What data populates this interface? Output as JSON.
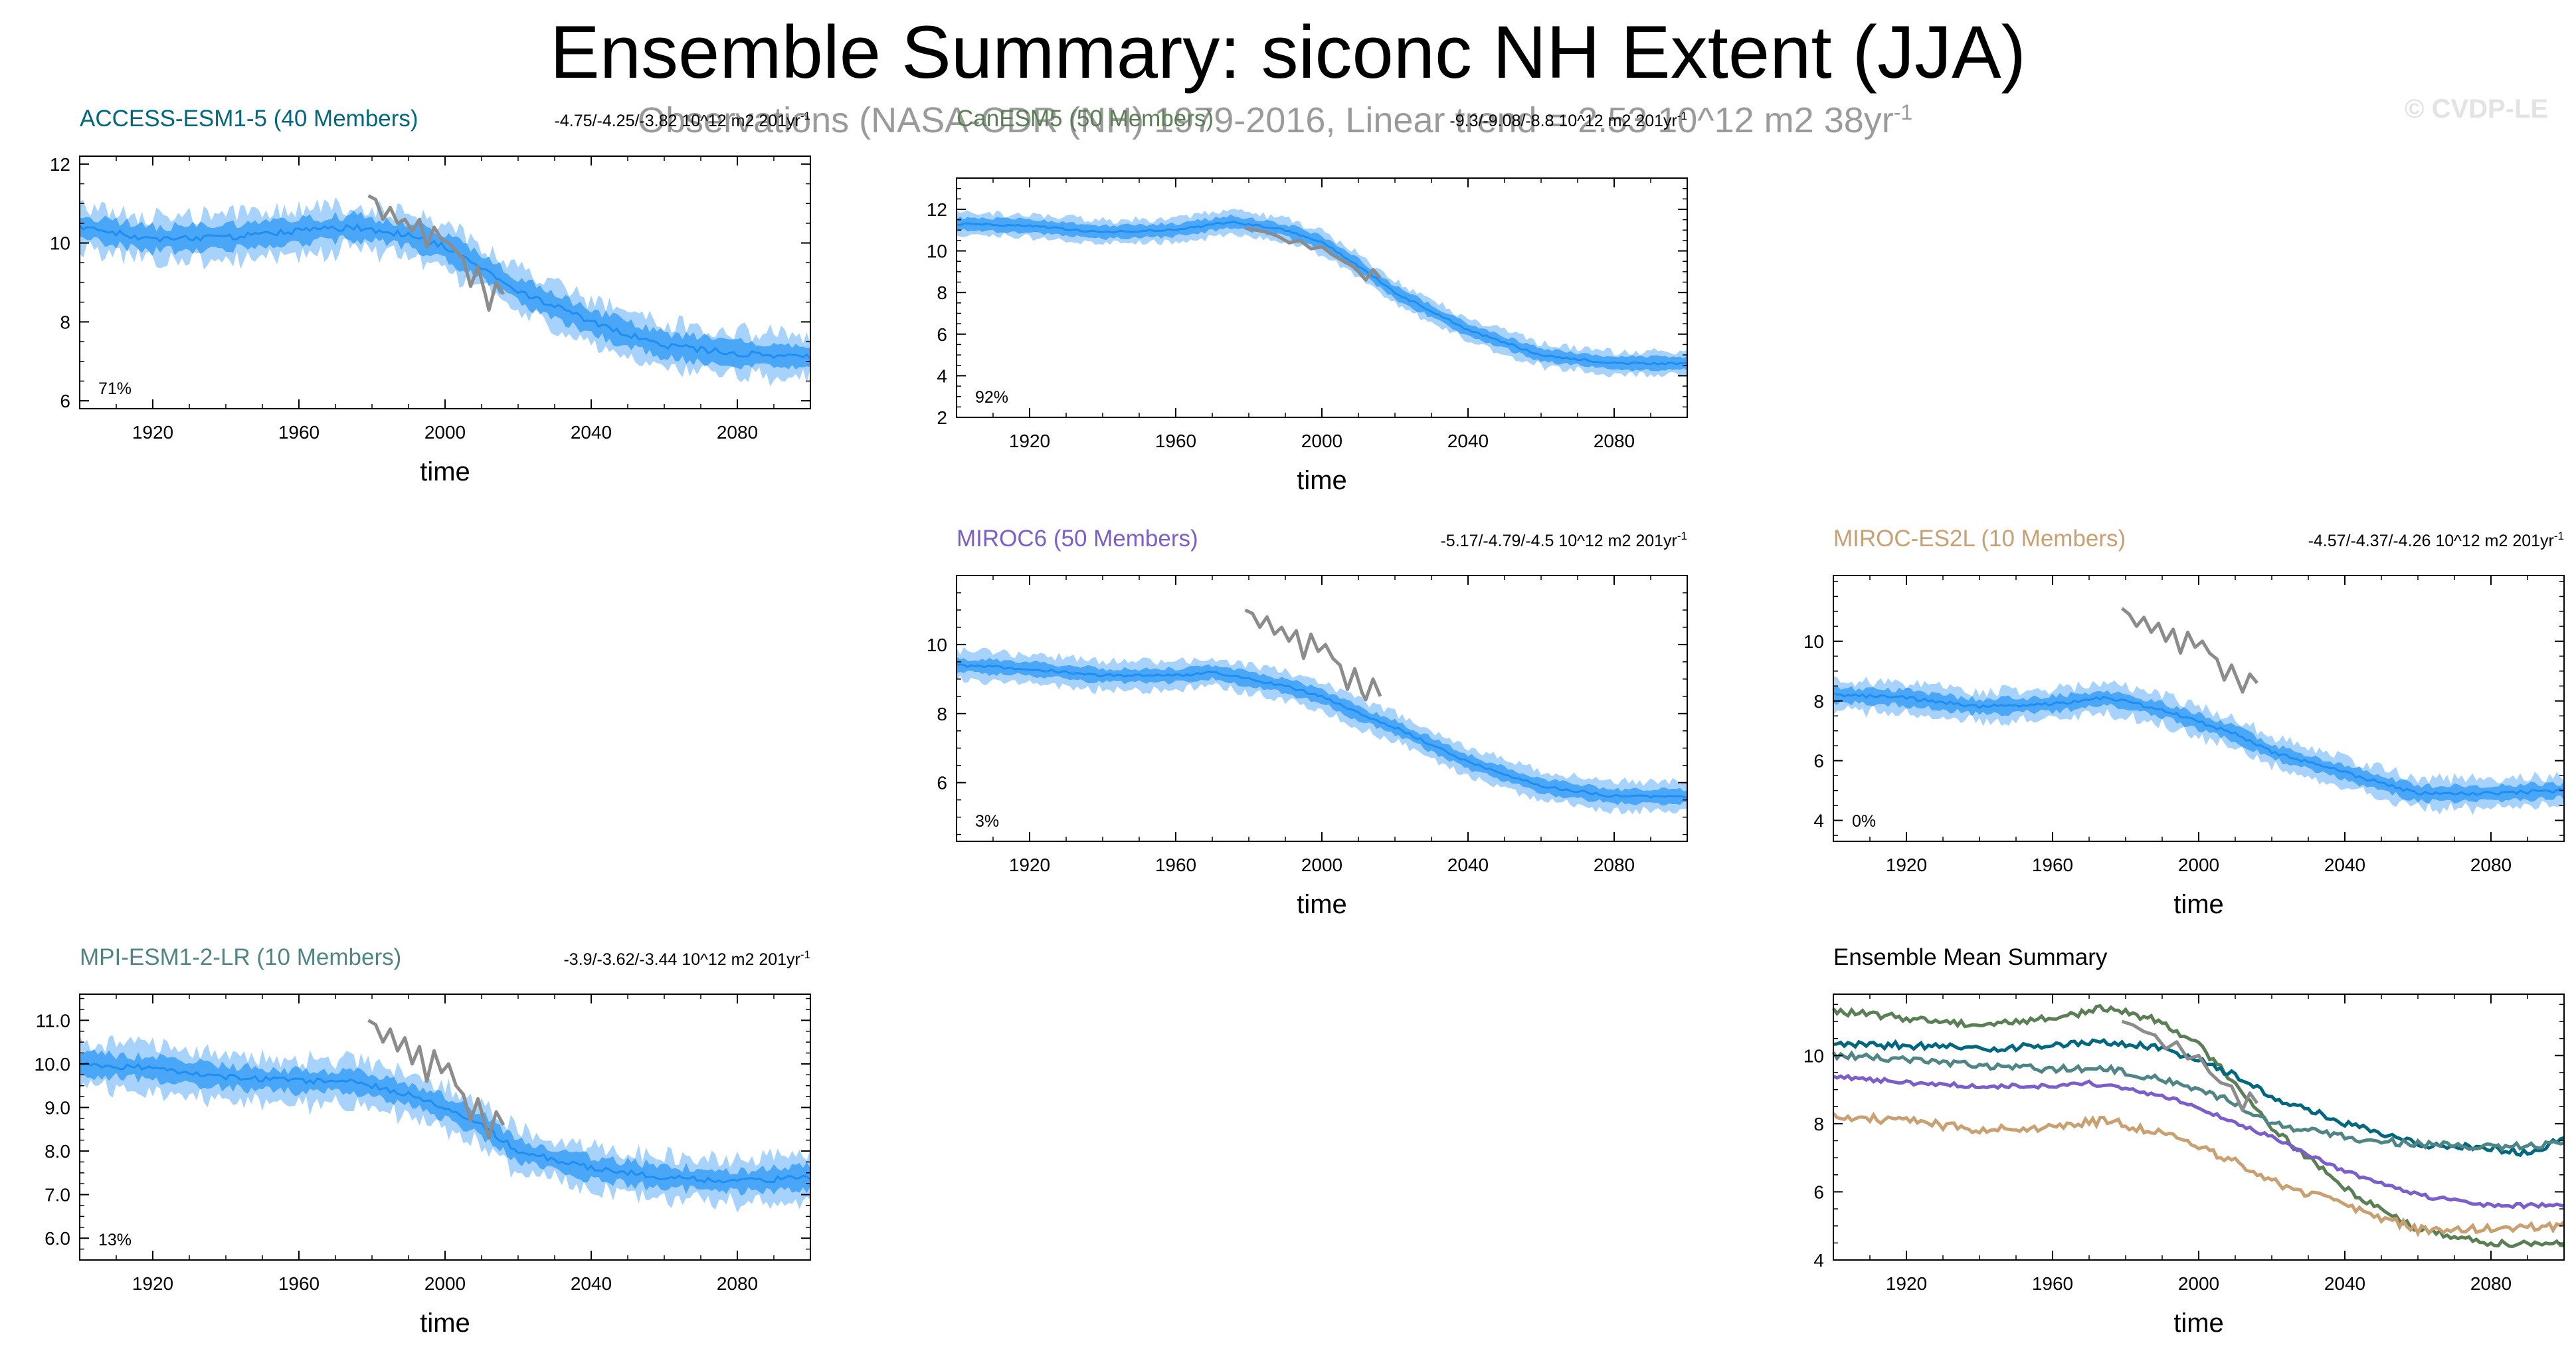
{
  "page": {
    "title": "Ensemble Summary: siconc NH Extent (JJA)",
    "observations": "Observations (NASA-CDR (NH) 1979-2016, Linear trend = 2.53 10^12 m2 38yr",
    "observations_sup": "-1",
    "copyright": "© CVDP-LE"
  },
  "colors": {
    "band_outer": "#a6d2fb",
    "band_inner": "#4aa6f7",
    "mean_line": "#1f8ef2",
    "observations": "#8c8c8c"
  },
  "chart_data": [
    {
      "id": "access",
      "type": "line",
      "title": "ACCESS-ESM1-5 (40 Members)",
      "title_color": "#00677f",
      "trend": "-4.75/-4.25/-3.82 10^12 m2 201yr",
      "trend_sup": "-1",
      "percent": "71%",
      "xlabel": "time",
      "xlim": [
        1900,
        2100
      ],
      "ylim": [
        5.8,
        12.2
      ],
      "yticks": [
        6,
        8,
        10,
        12
      ],
      "xticks": [
        1920,
        1960,
        2000,
        2040,
        2080
      ],
      "mean_keypoints": [
        [
          1900,
          10.4
        ],
        [
          1920,
          10.1
        ],
        [
          1940,
          10.15
        ],
        [
          1960,
          10.3
        ],
        [
          1975,
          10.4
        ],
        [
          1990,
          10.2
        ],
        [
          2000,
          9.9
        ],
        [
          2010,
          9.4
        ],
        [
          2020,
          8.8
        ],
        [
          2040,
          8.0
        ],
        [
          2060,
          7.4
        ],
        [
          2080,
          7.2
        ],
        [
          2100,
          7.1
        ]
      ],
      "band_inner_halfwidth": 0.3,
      "band_outer_halfwidth": 0.55,
      "noise": 0.25,
      "obs": [
        [
          1979,
          11.2
        ],
        [
          1981,
          11.1
        ],
        [
          1983,
          10.6
        ],
        [
          1985,
          10.9
        ],
        [
          1987,
          10.5
        ],
        [
          1989,
          10.6
        ],
        [
          1991,
          10.3
        ],
        [
          1993,
          10.6
        ],
        [
          1995,
          9.9
        ],
        [
          1997,
          10.4
        ],
        [
          1999,
          10.1
        ],
        [
          2001,
          10.0
        ],
        [
          2003,
          9.8
        ],
        [
          2005,
          9.6
        ],
        [
          2007,
          8.9
        ],
        [
          2009,
          9.4
        ],
        [
          2011,
          8.7
        ],
        [
          2012,
          8.3
        ],
        [
          2014,
          9.0
        ],
        [
          2016,
          8.7
        ]
      ]
    },
    {
      "id": "cesm",
      "type": "line",
      "title": "CanESM5 (50 Members)",
      "title_color": "#5b7f54",
      "trend": "-9.3/-9.08/-8.8 10^12 m2 201yr",
      "trend_sup": "-1",
      "percent": "92%",
      "xlabel": "time",
      "xlim": [
        1900,
        2100
      ],
      "ylim": [
        2,
        13.5
      ],
      "yticks": [
        2,
        4,
        6,
        8,
        10,
        12
      ],
      "xticks": [
        1920,
        1960,
        2000,
        2040,
        2080
      ],
      "mean_keypoints": [
        [
          1900,
          11.3
        ],
        [
          1920,
          11.2
        ],
        [
          1940,
          10.9
        ],
        [
          1960,
          11.0
        ],
        [
          1975,
          11.4
        ],
        [
          1990,
          11.0
        ],
        [
          2000,
          10.4
        ],
        [
          2010,
          9.3
        ],
        [
          2020,
          8.0
        ],
        [
          2040,
          6.2
        ],
        [
          2060,
          5.0
        ],
        [
          2080,
          4.6
        ],
        [
          2100,
          4.6
        ]
      ],
      "band_inner_halfwidth": 0.3,
      "band_outer_halfwidth": 0.55,
      "noise": 0.18,
      "obs": [
        [
          1979,
          11.1
        ],
        [
          1982,
          11.0
        ],
        [
          1985,
          10.9
        ],
        [
          1988,
          10.7
        ],
        [
          1991,
          10.4
        ],
        [
          1994,
          10.5
        ],
        [
          1997,
          10.1
        ],
        [
          2000,
          10.2
        ],
        [
          2003,
          9.8
        ],
        [
          2006,
          9.5
        ],
        [
          2009,
          9.2
        ],
        [
          2012,
          8.6
        ],
        [
          2014,
          9.1
        ],
        [
          2016,
          8.7
        ]
      ]
    },
    {
      "id": "miroc6",
      "type": "line",
      "title": "MIROC6 (50 Members)",
      "title_color": "#7b5ec9",
      "trend": "-5.17/-4.79/-4.5 10^12 m2 201yr",
      "trend_sup": "-1",
      "percent": "3%",
      "xlabel": "time",
      "xlim": [
        1900,
        2100
      ],
      "ylim": [
        4.3,
        12.0
      ],
      "yticks": [
        6,
        8,
        10
      ],
      "xticks": [
        1920,
        1960,
        2000,
        2040,
        2080
      ],
      "mean_keypoints": [
        [
          1900,
          9.4
        ],
        [
          1920,
          9.3
        ],
        [
          1940,
          9.1
        ],
        [
          1960,
          9.1
        ],
        [
          1970,
          9.2
        ],
        [
          1990,
          8.8
        ],
        [
          2000,
          8.5
        ],
        [
          2010,
          8.0
        ],
        [
          2020,
          7.6
        ],
        [
          2040,
          6.6
        ],
        [
          2060,
          5.9
        ],
        [
          2080,
          5.6
        ],
        [
          2100,
          5.6
        ]
      ],
      "band_inner_halfwidth": 0.2,
      "band_outer_halfwidth": 0.42,
      "noise": 0.13,
      "obs": [
        [
          1979,
          11.0
        ],
        [
          1981,
          10.9
        ],
        [
          1983,
          10.5
        ],
        [
          1985,
          10.8
        ],
        [
          1987,
          10.3
        ],
        [
          1989,
          10.5
        ],
        [
          1991,
          10.1
        ],
        [
          1993,
          10.4
        ],
        [
          1995,
          9.6
        ],
        [
          1997,
          10.3
        ],
        [
          1999,
          9.8
        ],
        [
          2001,
          10.0
        ],
        [
          2003,
          9.6
        ],
        [
          2005,
          9.4
        ],
        [
          2007,
          8.7
        ],
        [
          2009,
          9.3
        ],
        [
          2011,
          8.6
        ],
        [
          2012,
          8.4
        ],
        [
          2014,
          9.0
        ],
        [
          2016,
          8.5
        ]
      ]
    },
    {
      "id": "miroc-es2l",
      "type": "line",
      "title": "MIROC-ES2L (10 Members)",
      "title_color": "#c8a072",
      "trend": "-4.57/-4.37/-4.26 10^12 m2 201yr",
      "trend_sup": "-1",
      "percent": "0%",
      "xlabel": "time",
      "xlim": [
        1900,
        2100
      ],
      "ylim": [
        3.3,
        12.2
      ],
      "yticks": [
        4,
        6,
        8,
        10
      ],
      "xticks": [
        1920,
        1960,
        2000,
        2040,
        2080
      ],
      "mean_keypoints": [
        [
          1900,
          8.2
        ],
        [
          1920,
          8.1
        ],
        [
          1940,
          7.8
        ],
        [
          1960,
          7.9
        ],
        [
          1975,
          8.1
        ],
        [
          1990,
          7.7
        ],
        [
          2000,
          7.3
        ],
        [
          2010,
          6.9
        ],
        [
          2020,
          6.3
        ],
        [
          2040,
          5.6
        ],
        [
          2060,
          4.9
        ],
        [
          2080,
          4.9
        ],
        [
          2100,
          5.0
        ]
      ],
      "band_inner_halfwidth": 0.25,
      "band_outer_halfwidth": 0.5,
      "noise": 0.2,
      "obs": [
        [
          1979,
          11.1
        ],
        [
          1981,
          10.9
        ],
        [
          1983,
          10.5
        ],
        [
          1985,
          10.8
        ],
        [
          1987,
          10.3
        ],
        [
          1989,
          10.6
        ],
        [
          1991,
          10.0
        ],
        [
          1993,
          10.4
        ],
        [
          1995,
          9.6
        ],
        [
          1997,
          10.3
        ],
        [
          1999,
          9.8
        ],
        [
          2001,
          10.0
        ],
        [
          2003,
          9.6
        ],
        [
          2005,
          9.4
        ],
        [
          2007,
          8.7
        ],
        [
          2009,
          9.2
        ],
        [
          2011,
          8.6
        ],
        [
          2012,
          8.3
        ],
        [
          2014,
          8.9
        ],
        [
          2016,
          8.6
        ]
      ]
    },
    {
      "id": "mpi",
      "type": "line",
      "title": "MPI-ESM1-2-LR (10 Members)",
      "title_color": "#4f8585",
      "trend": "-3.9/-3.62/-3.44 10^12 m2 201yr",
      "trend_sup": "-1",
      "percent": "13%",
      "xlabel": "time",
      "xlim": [
        1900,
        2100
      ],
      "ylim": [
        5.5,
        11.6
      ],
      "yticks": [
        6.0,
        7.0,
        8.0,
        9.0,
        10.0,
        11.0
      ],
      "ytick_format": "fixed1",
      "xticks": [
        1920,
        1960,
        2000,
        2040,
        2080
      ],
      "mean_keypoints": [
        [
          1900,
          10.0
        ],
        [
          1920,
          9.9
        ],
        [
          1940,
          9.7
        ],
        [
          1960,
          9.6
        ],
        [
          1975,
          9.6
        ],
        [
          1990,
          9.3
        ],
        [
          2000,
          9.0
        ],
        [
          2010,
          8.6
        ],
        [
          2020,
          8.0
        ],
        [
          2040,
          7.6
        ],
        [
          2060,
          7.4
        ],
        [
          2080,
          7.3
        ],
        [
          2100,
          7.4
        ]
      ],
      "band_inner_halfwidth": 0.25,
      "band_outer_halfwidth": 0.5,
      "noise": 0.22,
      "obs": [
        [
          1979,
          11.0
        ],
        [
          1981,
          10.9
        ],
        [
          1983,
          10.5
        ],
        [
          1985,
          10.8
        ],
        [
          1987,
          10.3
        ],
        [
          1989,
          10.6
        ],
        [
          1991,
          10.0
        ],
        [
          1993,
          10.4
        ],
        [
          1995,
          9.6
        ],
        [
          1997,
          10.3
        ],
        [
          1999,
          9.8
        ],
        [
          2001,
          10.0
        ],
        [
          2003,
          9.5
        ],
        [
          2005,
          9.3
        ],
        [
          2007,
          8.7
        ],
        [
          2009,
          9.2
        ],
        [
          2011,
          8.6
        ],
        [
          2012,
          8.3
        ],
        [
          2014,
          8.9
        ],
        [
          2016,
          8.6
        ]
      ]
    },
    {
      "id": "ensemble-mean",
      "type": "line",
      "title": "Ensemble Mean Summary",
      "title_color": "#000000",
      "xlabel": "time",
      "xlim": [
        1900,
        2100
      ],
      "ylim": [
        4,
        11.8
      ],
      "yticks": [
        4,
        6,
        8,
        10
      ],
      "xticks": [
        1920,
        1960,
        2000,
        2040,
        2080
      ],
      "series": [
        {
          "color": "#5b7f54",
          "noise": 0.1,
          "keypoints": [
            [
              1900,
              11.3
            ],
            [
              1920,
              11.1
            ],
            [
              1940,
              10.9
            ],
            [
              1960,
              11.1
            ],
            [
              1975,
              11.4
            ],
            [
              1990,
              11.0
            ],
            [
              2000,
              10.3
            ],
            [
              2010,
              9.2
            ],
            [
              2020,
              7.9
            ],
            [
              2040,
              6.1
            ],
            [
              2060,
              4.9
            ],
            [
              2080,
              4.5
            ],
            [
              2100,
              4.5
            ]
          ]
        },
        {
          "color": "#00677f",
          "noise": 0.1,
          "keypoints": [
            [
              1900,
              10.3
            ],
            [
              1920,
              10.3
            ],
            [
              1940,
              10.2
            ],
            [
              1960,
              10.3
            ],
            [
              1975,
              10.4
            ],
            [
              1990,
              10.2
            ],
            [
              2000,
              9.9
            ],
            [
              2010,
              9.4
            ],
            [
              2020,
              8.8
            ],
            [
              2040,
              8.0
            ],
            [
              2060,
              7.4
            ],
            [
              2080,
              7.3
            ],
            [
              2090,
              7.1
            ],
            [
              2100,
              7.6
            ]
          ]
        },
        {
          "color": "#4f8585",
          "noise": 0.1,
          "keypoints": [
            [
              1900,
              10.0
            ],
            [
              1920,
              9.9
            ],
            [
              1940,
              9.7
            ],
            [
              1960,
              9.6
            ],
            [
              1975,
              9.6
            ],
            [
              1990,
              9.3
            ],
            [
              2000,
              9.0
            ],
            [
              2010,
              8.6
            ],
            [
              2020,
              8.0
            ],
            [
              2040,
              7.6
            ],
            [
              2060,
              7.4
            ],
            [
              2080,
              7.3
            ],
            [
              2100,
              7.4
            ]
          ]
        },
        {
          "color": "#7b5ec9",
          "noise": 0.06,
          "keypoints": [
            [
              1900,
              9.4
            ],
            [
              1920,
              9.2
            ],
            [
              1940,
              9.1
            ],
            [
              1960,
              9.1
            ],
            [
              1970,
              9.2
            ],
            [
              1990,
              8.8
            ],
            [
              2000,
              8.5
            ],
            [
              2010,
              8.0
            ],
            [
              2020,
              7.6
            ],
            [
              2040,
              6.6
            ],
            [
              2060,
              5.9
            ],
            [
              2080,
              5.6
            ],
            [
              2100,
              5.6
            ]
          ]
        },
        {
          "color": "#c8a072",
          "noise": 0.12,
          "keypoints": [
            [
              1900,
              8.2
            ],
            [
              1920,
              8.1
            ],
            [
              1940,
              7.8
            ],
            [
              1960,
              7.9
            ],
            [
              1975,
              8.1
            ],
            [
              1990,
              7.7
            ],
            [
              2000,
              7.3
            ],
            [
              2010,
              6.9
            ],
            [
              2020,
              6.3
            ],
            [
              2040,
              5.6
            ],
            [
              2060,
              4.9
            ],
            [
              2080,
              4.9
            ],
            [
              2100,
              5.0
            ]
          ]
        }
      ],
      "obs": [
        [
          1979,
          11.0
        ],
        [
          1982,
          10.9
        ],
        [
          1985,
          10.7
        ],
        [
          1988,
          10.6
        ],
        [
          1991,
          10.2
        ],
        [
          1994,
          10.4
        ],
        [
          1997,
          9.9
        ],
        [
          2000,
          10.0
        ],
        [
          2003,
          9.5
        ],
        [
          2006,
          9.2
        ],
        [
          2009,
          9.1
        ],
        [
          2012,
          8.4
        ],
        [
          2014,
          8.9
        ],
        [
          2016,
          8.6
        ]
      ]
    }
  ]
}
